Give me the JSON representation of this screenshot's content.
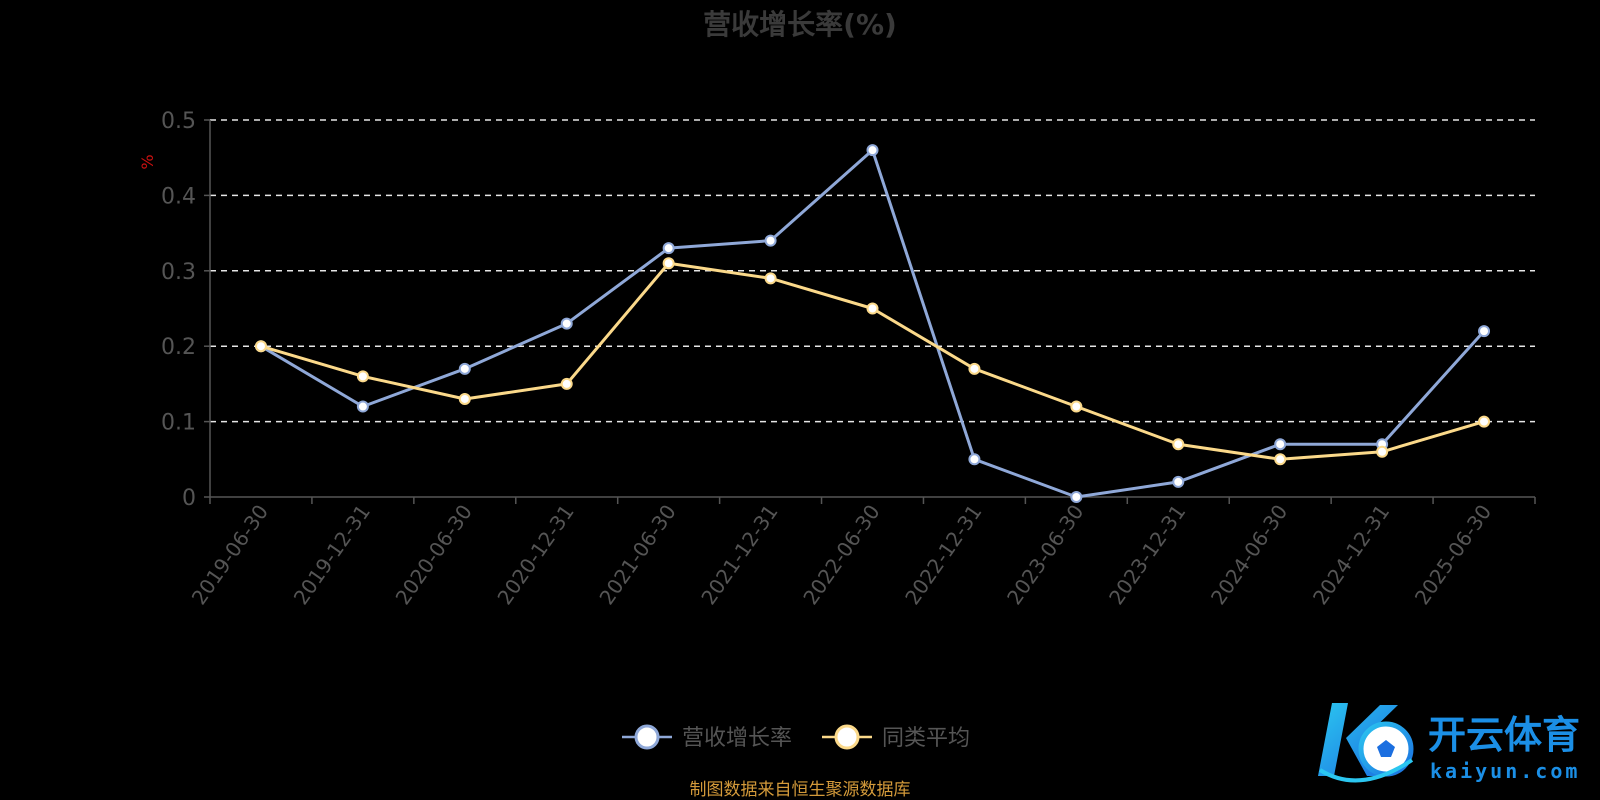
{
  "chart_data": {
    "type": "line",
    "title": "营收增长率(%)",
    "ylabel": "%",
    "categories": [
      "2019-06-30",
      "2019-12-31",
      "2020-06-30",
      "2020-12-31",
      "2021-06-30",
      "2021-12-31",
      "2022-06-30",
      "2022-12-31",
      "2023-06-30",
      "2023-12-31",
      "2024-06-30",
      "2024-12-31",
      "2025-06-30"
    ],
    "y_ticks": [
      "0",
      "0.1",
      "0.2",
      "0.3",
      "0.4",
      "0.5"
    ],
    "ylim": [
      0,
      0.5
    ],
    "grid": "horizontal dashed",
    "legend_position": "bottom-center",
    "series": [
      {
        "name": "营收增长率",
        "color": "#8fa8d8",
        "values": [
          0.2,
          0.12,
          0.17,
          0.23,
          0.33,
          0.34,
          0.46,
          0.05,
          0.0,
          0.02,
          0.07,
          0.07,
          0.22
        ]
      },
      {
        "name": "同类平均",
        "color": "#fbd98a",
        "values": [
          0.2,
          0.16,
          0.13,
          0.15,
          0.31,
          0.29,
          0.25,
          0.17,
          0.12,
          0.07,
          0.05,
          0.06,
          0.1
        ]
      }
    ]
  },
  "source_note": "制图数据来自恒生聚源数据库",
  "watermark": {
    "cn": "开云体育",
    "en": "kaiyun.com",
    "colors": {
      "primary": "#1b8fe6",
      "secondary": "#2bc6f0"
    }
  }
}
